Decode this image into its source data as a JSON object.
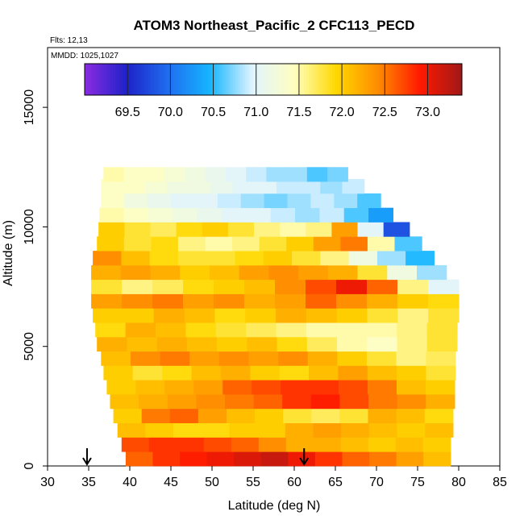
{
  "chart_data": {
    "type": "heatmap",
    "title": "ATOM3 Northeast_Pacific_2 CFC113_PECD",
    "flights_label": "Flts: 12,13",
    "dates_label": "MMDD: 1025,1027",
    "xlabel": "Latitude (deg N)",
    "ylabel": "Altitude (m)",
    "xlim": [
      30,
      85
    ],
    "ylim": [
      0,
      17500
    ],
    "x_ticks": [
      "30",
      "35",
      "40",
      "45",
      "50",
      "55",
      "60",
      "65",
      "70",
      "75",
      "80",
      "85"
    ],
    "y_ticks": [
      "0",
      "5000",
      "10000",
      "15000"
    ],
    "colorbar": {
      "min": 69.0,
      "max": 73.4,
      "ticks": [
        "69.5",
        "70.0",
        "70.5",
        "71.0",
        "71.5",
        "72.0",
        "72.5",
        "73.0"
      ],
      "colors": [
        "#8a2be2",
        "#1e22c8",
        "#1f6ef0",
        "#16b6ff",
        "#e0f4ff",
        "#ffffc0",
        "#ffd800",
        "#ff8c00",
        "#ff1a00",
        "#a01818"
      ]
    },
    "profile_markers_lat": [
      34.8,
      61.2
    ],
    "bands": [
      {
        "alt": 300,
        "lat_start": 39.5,
        "lat_end": 79.0,
        "values": [
          72.6,
          72.8,
          72.9,
          73.0,
          73.1,
          73.2,
          73.0,
          72.8,
          72.6,
          72.5,
          72.3,
          72.1
        ]
      },
      {
        "alt": 900,
        "lat_start": 39.0,
        "lat_end": 79.0,
        "values": [
          72.7,
          72.8,
          72.8,
          72.7,
          72.6,
          72.4,
          72.2,
          72.2,
          72.1,
          72.0,
          72.1,
          72.0
        ]
      },
      {
        "alt": 1500,
        "lat_start": 38.5,
        "lat_end": 79.3,
        "values": [
          72.1,
          72.0,
          71.9,
          71.9,
          72.0,
          72.0,
          72.2,
          72.3,
          72.2,
          72.1,
          72.0,
          72.1
        ]
      },
      {
        "alt": 2100,
        "lat_start": 38.0,
        "lat_end": 79.3,
        "values": [
          72.0,
          72.5,
          72.6,
          72.3,
          72.1,
          72.0,
          71.8,
          71.7,
          71.8,
          72.2,
          72.1,
          71.9
        ]
      },
      {
        "alt": 2700,
        "lat_start": 37.6,
        "lat_end": 79.5,
        "values": [
          72.1,
          72.2,
          72.3,
          72.4,
          72.5,
          72.6,
          72.8,
          72.9,
          72.7,
          72.5,
          72.4,
          72.2
        ]
      },
      {
        "alt": 3300,
        "lat_start": 37.2,
        "lat_end": 79.5,
        "values": [
          72.0,
          72.1,
          72.2,
          72.3,
          72.6,
          72.7,
          72.8,
          72.8,
          72.7,
          72.5,
          72.1,
          72.0
        ]
      },
      {
        "alt": 3900,
        "lat_start": 36.8,
        "lat_end": 79.6,
        "values": [
          72.0,
          71.8,
          71.9,
          72.1,
          72.2,
          72.0,
          71.9,
          72.1,
          72.3,
          72.1,
          72.0,
          71.8
        ]
      },
      {
        "alt": 4500,
        "lat_start": 36.5,
        "lat_end": 79.6,
        "values": [
          72.1,
          72.4,
          72.5,
          72.3,
          72.4,
          72.3,
          72.4,
          72.2,
          72.0,
          71.8,
          71.6,
          71.7
        ]
      },
      {
        "alt": 5100,
        "lat_start": 36.0,
        "lat_end": 79.8,
        "values": [
          72.2,
          72.1,
          72.2,
          72.1,
          72.0,
          72.1,
          71.9,
          71.7,
          71.5,
          71.4,
          71.6,
          71.8
        ]
      },
      {
        "alt": 5700,
        "lat_start": 35.8,
        "lat_end": 79.8,
        "values": [
          71.9,
          72.2,
          72.1,
          71.9,
          71.8,
          71.7,
          71.6,
          71.5,
          71.5,
          71.5,
          71.6,
          71.8
        ]
      },
      {
        "alt": 6300,
        "lat_start": 35.5,
        "lat_end": 80.0,
        "values": [
          72.0,
          72.0,
          72.2,
          72.1,
          71.9,
          72.0,
          72.2,
          72.1,
          72.0,
          71.8,
          71.6,
          71.8
        ]
      },
      {
        "alt": 6900,
        "lat_start": 35.3,
        "lat_end": 80.0,
        "values": [
          72.3,
          72.4,
          72.5,
          72.3,
          72.4,
          72.2,
          72.3,
          72.6,
          72.4,
          72.2,
          72.0,
          71.9
        ]
      },
      {
        "alt": 7500,
        "lat_start": 35.3,
        "lat_end": 80.0,
        "values": [
          71.8,
          71.6,
          71.7,
          71.9,
          72.0,
          72.1,
          72.4,
          72.7,
          73.0,
          72.6,
          71.6,
          71.0
        ]
      },
      {
        "alt": 8100,
        "lat_start": 35.3,
        "lat_end": 78.5,
        "values": [
          72.2,
          72.3,
          72.2,
          72.0,
          72.1,
          72.3,
          72.4,
          72.3,
          72.2,
          71.8,
          71.2,
          70.8
        ]
      },
      {
        "alt": 8700,
        "lat_start": 35.5,
        "lat_end": 77.0,
        "values": [
          72.4,
          72.1,
          71.9,
          71.8,
          71.8,
          71.9,
          72.0,
          71.8,
          71.6,
          71.2,
          70.8,
          70.5
        ]
      },
      {
        "alt": 9300,
        "lat_start": 36.0,
        "lat_end": 75.5,
        "values": [
          72.0,
          71.8,
          71.9,
          71.6,
          71.5,
          71.6,
          71.8,
          72.0,
          72.3,
          72.5,
          71.5,
          70.6
        ]
      },
      {
        "alt": 9900,
        "lat_start": 36.2,
        "lat_end": 74.0,
        "values": [
          72.0,
          71.8,
          71.7,
          71.9,
          72.0,
          71.8,
          71.6,
          71.5,
          71.6,
          72.3,
          71.0,
          69.8
        ]
      },
      {
        "alt": 10500,
        "lat_start": 36.3,
        "lat_end": 72.0,
        "values": [
          71.5,
          71.4,
          71.3,
          71.2,
          71.1,
          71.0,
          71.0,
          70.9,
          70.8,
          70.9,
          70.6,
          70.3
        ]
      },
      {
        "alt": 11100,
        "lat_start": 36.5,
        "lat_end": 70.5,
        "values": [
          71.4,
          71.2,
          71.1,
          71.0,
          71.0,
          70.9,
          70.8,
          70.7,
          70.8,
          70.9,
          70.8,
          70.6
        ]
      },
      {
        "alt": 11700,
        "lat_start": 36.5,
        "lat_end": 68.5,
        "values": [
          71.4,
          71.4,
          71.3,
          71.2,
          71.2,
          71.1,
          71.0,
          71.0,
          70.9,
          70.9,
          70.8,
          70.9
        ]
      },
      {
        "alt": 12200,
        "lat_start": 36.8,
        "lat_end": 66.5,
        "values": [
          71.5,
          71.4,
          71.4,
          71.3,
          71.2,
          71.1,
          71.0,
          70.9,
          70.8,
          70.8,
          70.6,
          70.7
        ]
      }
    ]
  }
}
